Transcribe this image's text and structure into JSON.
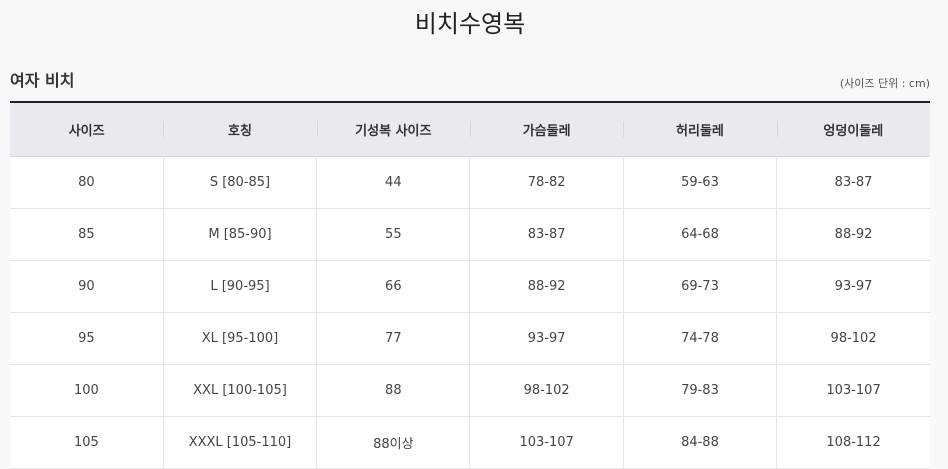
{
  "page_title": "비치수영복",
  "section_title": "여자 비치",
  "unit_note": "(사이즈 단위 : cm)",
  "table": {
    "headers": [
      "사이즈",
      "호칭",
      "기성복 사이즈",
      "가슴둘레",
      "허리둘레",
      "엉덩이둘레"
    ],
    "rows": [
      [
        "80",
        "S [80-85]",
        "44",
        "78-82",
        "59-63",
        "83-87"
      ],
      [
        "85",
        "M [85-90]",
        "55",
        "83-87",
        "64-68",
        "88-92"
      ],
      [
        "90",
        "L [90-95]",
        "66",
        "88-92",
        "69-73",
        "93-97"
      ],
      [
        "95",
        "XL [95-100]",
        "77",
        "93-97",
        "74-78",
        "98-102"
      ],
      [
        "100",
        "XXL [100-105]",
        "88",
        "98-102",
        "79-83",
        "103-107"
      ],
      [
        "105",
        "XXXL [105-110]",
        "88이상",
        "103-107",
        "84-88",
        "108-112"
      ]
    ]
  }
}
